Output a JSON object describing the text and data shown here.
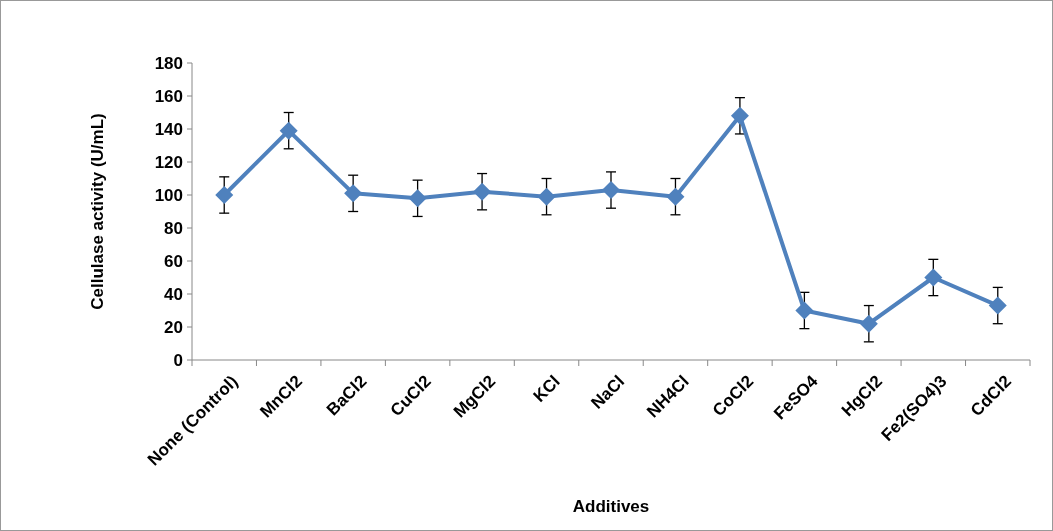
{
  "chart_data": {
    "type": "line",
    "xlabel": "Additives",
    "ylabel": "Cellulase activity (U/mL)",
    "categories": [
      "None (Control)",
      "MnCl2",
      "BaCl2",
      "CuCl2",
      "MgCl2",
      "KCl",
      "NaCl",
      "NH4Cl",
      "CoCl2",
      "FeSO4",
      "HgCl2",
      "Fe2(SO4)3",
      "CdCl2"
    ],
    "series": [
      {
        "color": "#4f81bd",
        "values": [
          100,
          139,
          101,
          98,
          102,
          99,
          103,
          99,
          148,
          30,
          22,
          50,
          33
        ],
        "errors": [
          11,
          11,
          11,
          11,
          11,
          11,
          11,
          11,
          11,
          11,
          11,
          11,
          11
        ]
      }
    ],
    "ylim": [
      0,
      180
    ],
    "yticks": [
      0,
      20,
      40,
      60,
      80,
      100,
      120,
      140,
      160,
      180
    ],
    "grid": false,
    "marker": "diamond",
    "line_style": "solid"
  }
}
